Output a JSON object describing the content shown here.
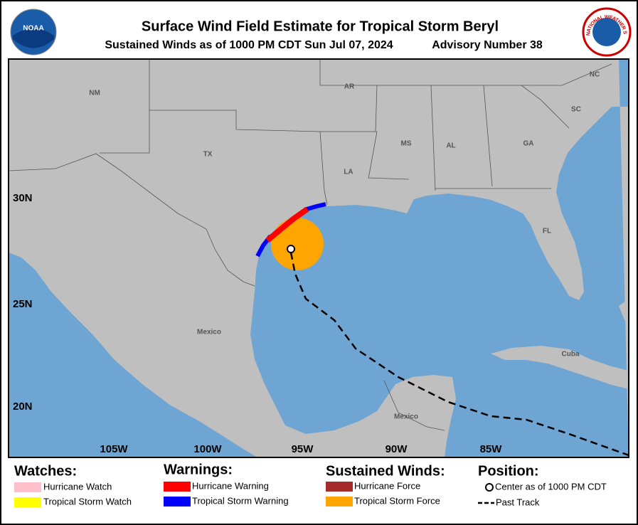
{
  "header": {
    "title": "Surface Wind Field Estimate for Tropical Storm Beryl",
    "subtitle": "Sustained Winds as of 1000 PM CDT Sun Jul 07, 2024",
    "advisory": "Advisory Number 38",
    "left_logo": "NOAA",
    "right_logo": "NATIONAL WEATHER SERVICE"
  },
  "map": {
    "places": [
      "NM",
      "TX",
      "AR",
      "MS",
      "AL",
      "GA",
      "SC",
      "NC",
      "LA",
      "FL",
      "Mexico",
      "Cuba",
      "Mexico"
    ],
    "lat_labels": [
      "30N",
      "25N",
      "20N"
    ],
    "lon_labels": [
      "105W",
      "100W",
      "95W",
      "90W",
      "85W"
    ]
  },
  "legend": {
    "watches": {
      "title": "Watches:",
      "items": [
        "Hurricane Watch",
        "Tropical Storm Watch"
      ]
    },
    "warnings": {
      "title": "Warnings:",
      "items": [
        "Hurricane Warning",
        "Tropical Storm Warning"
      ]
    },
    "winds": {
      "title": "Sustained Winds:",
      "items": [
        "Hurricane Force",
        "Tropical Storm Force"
      ]
    },
    "position": {
      "title": "Position:",
      "items": [
        "Center as of 1000 PM CDT",
        "Past Track"
      ]
    }
  }
}
